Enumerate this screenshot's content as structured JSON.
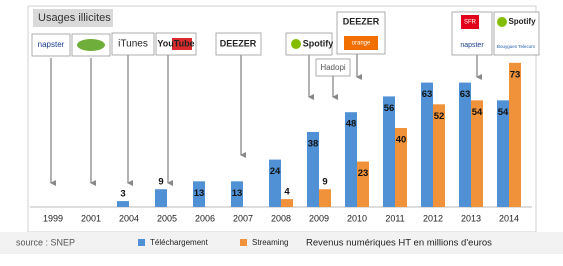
{
  "chart_data": {
    "type": "bar",
    "title": "Usages illicites",
    "subtitle": "Revenus numériques HT en millions d'euros",
    "source": "source : SNEP",
    "categories": [
      "1999",
      "2001",
      "2004",
      "2005",
      "2006",
      "2007",
      "2008",
      "2009",
      "2010",
      "2011",
      "2012",
      "2013",
      "2014"
    ],
    "series": [
      {
        "name": "Téléchargement",
        "color": "#4f91d4",
        "values": [
          null,
          null,
          3,
          9,
          13,
          13,
          24,
          38,
          48,
          56,
          63,
          63,
          54
        ]
      },
      {
        "name": "Streaming",
        "color": "#f0923a",
        "values": [
          null,
          null,
          null,
          null,
          null,
          null,
          4,
          9,
          23,
          40,
          52,
          54,
          73
        ]
      }
    ],
    "ylim": [
      0,
      80
    ],
    "logos": [
      "napster",
      "iTunes",
      "YouTube",
      "DEEZER",
      "Spotify",
      "Hadopi",
      "DEEZER",
      "orange",
      "SFR",
      "napster",
      "Spotify",
      "Bouygues Telecom"
    ]
  }
}
